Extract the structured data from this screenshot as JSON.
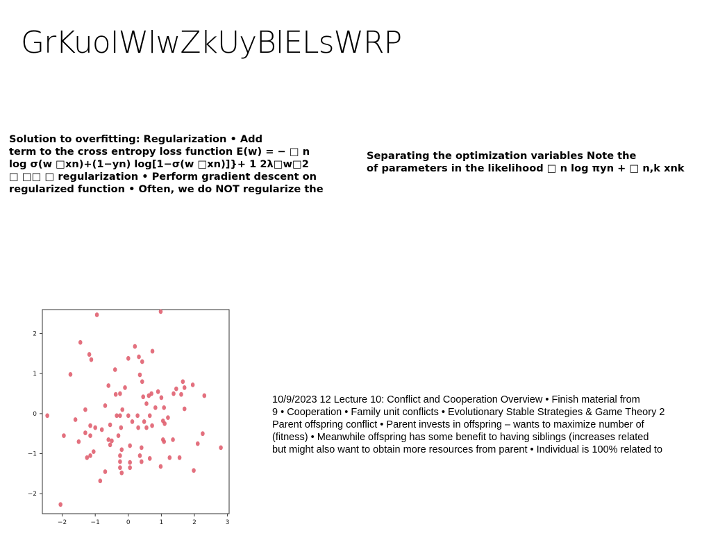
{
  "slide": {
    "title": "GrKuoIWlwZkUyBlELsWRP",
    "left_block": {
      "lines": [
        "Solution to overfitting: Regularization • Add",
        "term to the cross entropy loss function E(w) = − □ n",
        "log σ(w □xn)+(1−yn) log[1−σ(w □xn)]}+ 1 2λ□w□2",
        "□ □□ □ regularization • Perform gradient descent on",
        "regularized function • Often, we do NOT regularize the"
      ]
    },
    "right_block": {
      "lines": [
        "Separating the optimization variables Note the",
        "of parameters in the likelihood □ n log πyn + □ n,k xnk"
      ]
    },
    "lecture_block": {
      "lines": [
        "10/9/2023 12 Lecture 10: Conflict and Cooperation Overview • Finish material from",
        "9 • Cooperation • Family unit conflicts • Evolutionary Stable Strategies & Game Theory 2",
        "Parent offspring conflict • Parent invests in offspring – wants to maximize number of",
        "(fitness) • Meanwhile offspring has some benefit to having siblings (increases related",
        "but might also want to obtain more resources from parent • Individual is 100% related to"
      ]
    }
  },
  "chart_data": {
    "type": "scatter",
    "title": "",
    "xlabel": "",
    "ylabel": "",
    "xlim": [
      -2.6,
      3.05
    ],
    "ylim": [
      -2.5,
      2.6
    ],
    "xticks": [
      "−2",
      "−1",
      "0",
      "1",
      "2",
      "3"
    ],
    "yticks": [
      "2",
      "1",
      "0",
      "−1",
      "−2"
    ],
    "xtick_values": [
      -2,
      -1,
      0,
      1,
      2,
      3
    ],
    "ytick_values": [
      2,
      1,
      0,
      -1,
      -2
    ],
    "grid": false,
    "marker_color": "#e06070",
    "series": [
      {
        "points": [
          [
            -0.95,
            2.47
          ],
          [
            0.98,
            2.55
          ],
          [
            -1.45,
            1.78
          ],
          [
            0.2,
            1.68
          ],
          [
            0.73,
            1.56
          ],
          [
            -0.4,
            1.1
          ],
          [
            -1.18,
            1.48
          ],
          [
            -1.12,
            1.35
          ],
          [
            0.0,
            1.38
          ],
          [
            0.32,
            1.42
          ],
          [
            0.42,
            1.3
          ],
          [
            -1.75,
            0.98
          ],
          [
            0.35,
            0.97
          ],
          [
            0.42,
            0.8
          ],
          [
            -0.6,
            0.7
          ],
          [
            -0.1,
            0.65
          ],
          [
            1.65,
            0.8
          ],
          [
            1.7,
            0.65
          ],
          [
            1.45,
            0.62
          ],
          [
            1.95,
            0.72
          ],
          [
            -0.38,
            0.48
          ],
          [
            -0.25,
            0.5
          ],
          [
            0.7,
            0.5
          ],
          [
            0.9,
            0.55
          ],
          [
            1.6,
            0.48
          ],
          [
            1.37,
            0.5
          ],
          [
            2.3,
            0.45
          ],
          [
            0.45,
            0.42
          ],
          [
            0.62,
            0.45
          ],
          [
            1.0,
            0.4
          ],
          [
            -0.7,
            0.2
          ],
          [
            0.55,
            0.25
          ],
          [
            1.08,
            0.15
          ],
          [
            1.7,
            0.12
          ],
          [
            -1.3,
            0.1
          ],
          [
            -0.18,
            0.1
          ],
          [
            0.82,
            0.15
          ],
          [
            -2.45,
            -0.05
          ],
          [
            -1.6,
            -0.15
          ],
          [
            -0.35,
            -0.05
          ],
          [
            -0.25,
            -0.05
          ],
          [
            0.0,
            -0.05
          ],
          [
            0.28,
            -0.05
          ],
          [
            0.65,
            -0.05
          ],
          [
            1.2,
            -0.1
          ],
          [
            1.05,
            -0.18
          ],
          [
            -1.15,
            -0.3
          ],
          [
            -0.55,
            -0.28
          ],
          [
            0.12,
            -0.2
          ],
          [
            0.48,
            -0.2
          ],
          [
            1.1,
            -0.25
          ],
          [
            -1.0,
            -0.35
          ],
          [
            -0.8,
            -0.4
          ],
          [
            -0.22,
            -0.35
          ],
          [
            0.3,
            -0.35
          ],
          [
            0.55,
            -0.35
          ],
          [
            0.72,
            -0.3
          ],
          [
            -1.3,
            -0.48
          ],
          [
            -1.15,
            -0.55
          ],
          [
            -0.3,
            -0.55
          ],
          [
            2.25,
            -0.5
          ],
          [
            -1.95,
            -0.55
          ],
          [
            -0.6,
            -0.65
          ],
          [
            -0.5,
            -0.68
          ],
          [
            0.05,
            -0.8
          ],
          [
            -0.55,
            -0.78
          ],
          [
            1.35,
            -0.65
          ],
          [
            1.08,
            -0.7
          ],
          [
            1.05,
            -0.65
          ],
          [
            2.1,
            -0.75
          ],
          [
            -0.2,
            -0.9
          ],
          [
            0.4,
            -0.85
          ],
          [
            -1.5,
            -0.7
          ],
          [
            2.8,
            -0.85
          ],
          [
            -1.05,
            -0.95
          ],
          [
            -0.25,
            -1.05
          ],
          [
            0.35,
            -1.05
          ],
          [
            0.65,
            -1.12
          ],
          [
            1.25,
            -1.1
          ],
          [
            1.55,
            -1.1
          ],
          [
            -1.25,
            -1.1
          ],
          [
            -0.25,
            -1.2
          ],
          [
            -1.15,
            -1.05
          ],
          [
            0.05,
            -1.22
          ],
          [
            0.4,
            -1.2
          ],
          [
            0.98,
            -1.32
          ],
          [
            -0.25,
            -1.35
          ],
          [
            0.05,
            -1.35
          ],
          [
            1.98,
            -1.42
          ],
          [
            -0.7,
            -1.45
          ],
          [
            -0.2,
            -1.48
          ],
          [
            -0.85,
            -1.68
          ],
          [
            -2.05,
            -2.27
          ]
        ]
      }
    ]
  }
}
